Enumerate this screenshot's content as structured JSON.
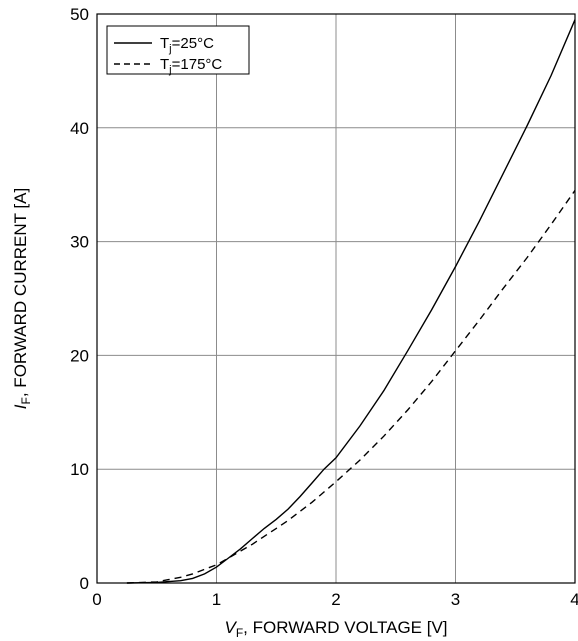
{
  "chart_data": {
    "type": "line",
    "xlabel_prefix": "V",
    "xlabel_sub": "F",
    "xlabel_rest": ", FORWARD VOLTAGE [V]",
    "ylabel_prefix": "I",
    "ylabel_sub": "F",
    "ylabel_rest": ", FORWARD CURRENT [A]",
    "xlim": [
      0,
      4
    ],
    "ylim": [
      0,
      50
    ],
    "x_ticks": [
      "0",
      "1",
      "2",
      "3",
      "4"
    ],
    "y_ticks": [
      "0",
      "10",
      "20",
      "30",
      "40",
      "50"
    ],
    "grid": true,
    "legend_position": "top-left",
    "series": [
      {
        "legend_pre": "T",
        "legend_sub": "j",
        "legend_post": "=25°C",
        "line_style": "solid",
        "x": [
          0.25,
          0.5,
          0.7,
          0.8,
          0.9,
          1.0,
          1.1,
          1.2,
          1.3,
          1.4,
          1.5,
          1.6,
          1.7,
          1.8,
          1.9,
          2.0,
          2.2,
          2.4,
          2.6,
          2.8,
          3.0,
          3.2,
          3.4,
          3.6,
          3.8,
          4.0
        ],
        "y": [
          0,
          0.05,
          0.2,
          0.4,
          0.8,
          1.4,
          2.2,
          3.0,
          3.9,
          4.8,
          5.6,
          6.5,
          7.6,
          8.8,
          10.0,
          11.0,
          13.8,
          16.9,
          20.4,
          24.0,
          27.8,
          31.8,
          36.0,
          40.2,
          44.6,
          49.5
        ]
      },
      {
        "legend_pre": "T",
        "legend_sub": "j",
        "legend_post": "=175°C",
        "line_style": "dashed",
        "x": [
          0.25,
          0.5,
          0.6,
          0.7,
          0.8,
          0.9,
          1.0,
          1.1,
          1.2,
          1.3,
          1.4,
          1.5,
          1.6,
          1.7,
          1.8,
          1.9,
          2.0,
          2.2,
          2.4,
          2.6,
          2.8,
          3.0,
          3.2,
          3.4,
          3.6,
          3.8,
          4.0
        ],
        "y": [
          0,
          0.1,
          0.3,
          0.5,
          0.8,
          1.2,
          1.6,
          2.2,
          2.8,
          3.4,
          4.1,
          4.8,
          5.5,
          6.3,
          7.1,
          8.0,
          8.9,
          10.8,
          12.9,
          15.2,
          17.7,
          20.4,
          23.1,
          25.9,
          28.6,
          31.5,
          34.5
        ]
      }
    ]
  }
}
